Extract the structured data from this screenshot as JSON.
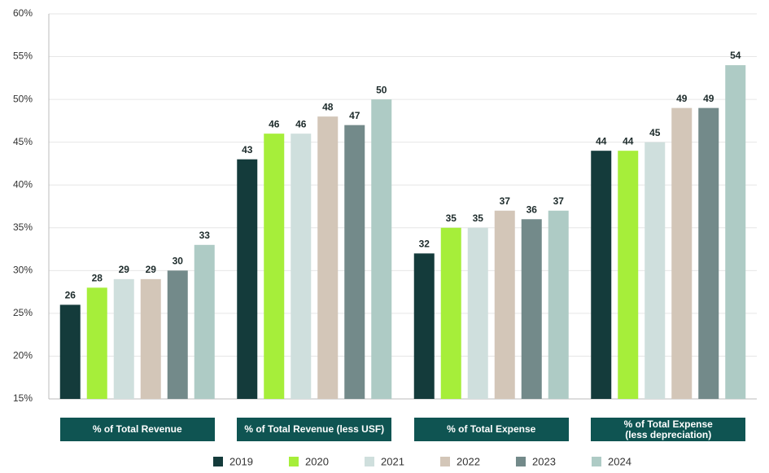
{
  "chart_data": {
    "type": "bar",
    "categories": [
      "% of Total Revenue",
      "% of Total Revenue (less USF)",
      "% of Total Expense",
      "% of Total Expense\n(less depreciation)"
    ],
    "series": [
      {
        "name": "2019",
        "color": "#143b3b",
        "values": [
          26,
          43,
          32,
          44
        ]
      },
      {
        "name": "2020",
        "color": "#a6ee3a",
        "values": [
          28,
          46,
          35,
          44
        ]
      },
      {
        "name": "2021",
        "color": "#cfdfdd",
        "values": [
          29,
          46,
          35,
          45
        ]
      },
      {
        "name": "2022",
        "color": "#d3c6b8",
        "values": [
          29,
          48,
          37,
          49
        ]
      },
      {
        "name": "2023",
        "color": "#738a8a",
        "values": [
          30,
          47,
          36,
          49
        ]
      },
      {
        "name": "2024",
        "color": "#aecbc5",
        "values": [
          33,
          50,
          37,
          54
        ]
      }
    ],
    "ylim": [
      15,
      60
    ],
    "yticks": [
      {
        "value": 15,
        "label": "15%"
      },
      {
        "value": 20,
        "label": "20%"
      },
      {
        "value": 25,
        "label": "25%"
      },
      {
        "value": 30,
        "label": "30%"
      },
      {
        "value": 35,
        "label": "35%"
      },
      {
        "value": 40,
        "label": "40%"
      },
      {
        "value": 45,
        "label": "45%"
      },
      {
        "value": 50,
        "label": "50%"
      },
      {
        "value": 55,
        "label": "55%"
      },
      {
        "value": 60,
        "label": "60%"
      }
    ],
    "grid": true
  }
}
